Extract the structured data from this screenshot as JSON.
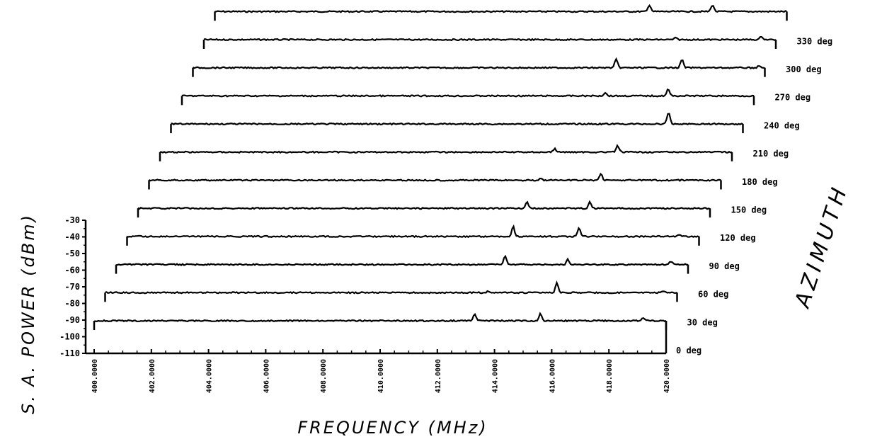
{
  "chart_data": {
    "type": "line",
    "title": "",
    "xlabel": "FREQUENCY (MHz)",
    "ylabel": "S. A. POWER (dBm)",
    "zlabel": "AZIMUTH",
    "x_range": [
      400.0,
      420.0
    ],
    "ylim": [
      -110,
      -30
    ],
    "x_ticks": [
      "400.0000",
      "402.0000",
      "404.0000",
      "406.0000",
      "408.0000",
      "410.0000",
      "412.0000",
      "414.0000",
      "416.0000",
      "418.0000",
      "420.0000"
    ],
    "y_ticks": [
      "-30",
      "-40",
      "-50",
      "-60",
      "-70",
      "-80",
      "-90",
      "-100",
      "-110"
    ],
    "noise_floor_dBm": -90,
    "series": [
      {
        "name": "0 deg",
        "peaks": [
          {
            "x": 413.3,
            "y": -86
          },
          {
            "x": 415.6,
            "y": -86
          },
          {
            "x": 419.2,
            "y": -88
          }
        ]
      },
      {
        "name": "30 deg",
        "peaks": [
          {
            "x": 413.4,
            "y": -89
          },
          {
            "x": 415.8,
            "y": -84
          },
          {
            "x": 419.5,
            "y": -89
          }
        ]
      },
      {
        "name": "60 deg",
        "peaks": [
          {
            "x": 413.6,
            "y": -85
          },
          {
            "x": 415.8,
            "y": -87
          },
          {
            "x": 419.4,
            "y": -88
          }
        ]
      },
      {
        "name": "90 deg",
        "peaks": [
          {
            "x": 413.5,
            "y": -84
          },
          {
            "x": 415.8,
            "y": -85
          },
          {
            "x": 419.3,
            "y": -89
          }
        ]
      },
      {
        "name": "120 deg",
        "peaks": [
          {
            "x": 413.6,
            "y": -86
          },
          {
            "x": 415.8,
            "y": -86
          }
        ]
      },
      {
        "name": "150 deg",
        "peaks": [
          {
            "x": 413.7,
            "y": -89
          },
          {
            "x": 415.8,
            "y": -86
          }
        ]
      },
      {
        "name": "180 deg",
        "peaks": [
          {
            "x": 413.8,
            "y": -88
          },
          {
            "x": 416.0,
            "y": -86
          }
        ]
      },
      {
        "name": "210 deg",
        "peaks": [
          {
            "x": 417.4,
            "y": -83
          }
        ]
      },
      {
        "name": "240 deg",
        "peaks": [
          {
            "x": 414.8,
            "y": -88
          },
          {
            "x": 417.0,
            "y": -86
          }
        ]
      },
      {
        "name": "270 deg",
        "peaks": [
          {
            "x": 414.8,
            "y": -85
          },
          {
            "x": 417.1,
            "y": -85
          },
          {
            "x": 419.8,
            "y": -89
          }
        ]
      },
      {
        "name": "300 deg",
        "peaks": [
          {
            "x": 416.5,
            "y": -89
          },
          {
            "x": 419.5,
            "y": -88
          }
        ]
      },
      {
        "name": "330 deg",
        "peaks": [
          {
            "x": 415.2,
            "y": -86
          },
          {
            "x": 417.4,
            "y": -86
          },
          {
            "x": 421.4,
            "y": -87
          }
        ]
      }
    ],
    "grid": false,
    "legend": "none"
  },
  "labels": {
    "ylabel": "S. A. POWER (dBm)",
    "xlabel": "FREQUENCY (MHz)",
    "zlabel": "AZIMUTH"
  },
  "colors": {
    "ink": "#000000",
    "background": "#ffffff"
  }
}
